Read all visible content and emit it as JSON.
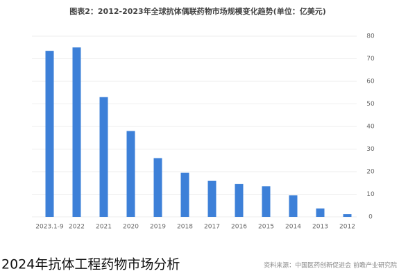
{
  "chart_data": {
    "type": "bar",
    "title": "图表2：2012-2023年全球抗体偶联药物市场规模变化趋势(单位：亿美元)",
    "categories": [
      "2023.1-9",
      "2022",
      "2021",
      "2020",
      "2019",
      "2018",
      "2017",
      "2016",
      "2015",
      "2014",
      "2013",
      "2012"
    ],
    "values": [
      73.5,
      75,
      53,
      38,
      26,
      19.5,
      16,
      14.5,
      13.5,
      9.5,
      3.7,
      1.2
    ],
    "color": "#3d80d8",
    "ylim": [
      0,
      80
    ],
    "yticks": [
      0,
      10,
      20,
      30,
      40,
      50,
      60,
      70,
      80
    ],
    "grid": true,
    "source": "资料来源：中国医药创新促进会 前瞻产业研究院"
  },
  "caption": "2024年抗体工程药物市场分析"
}
